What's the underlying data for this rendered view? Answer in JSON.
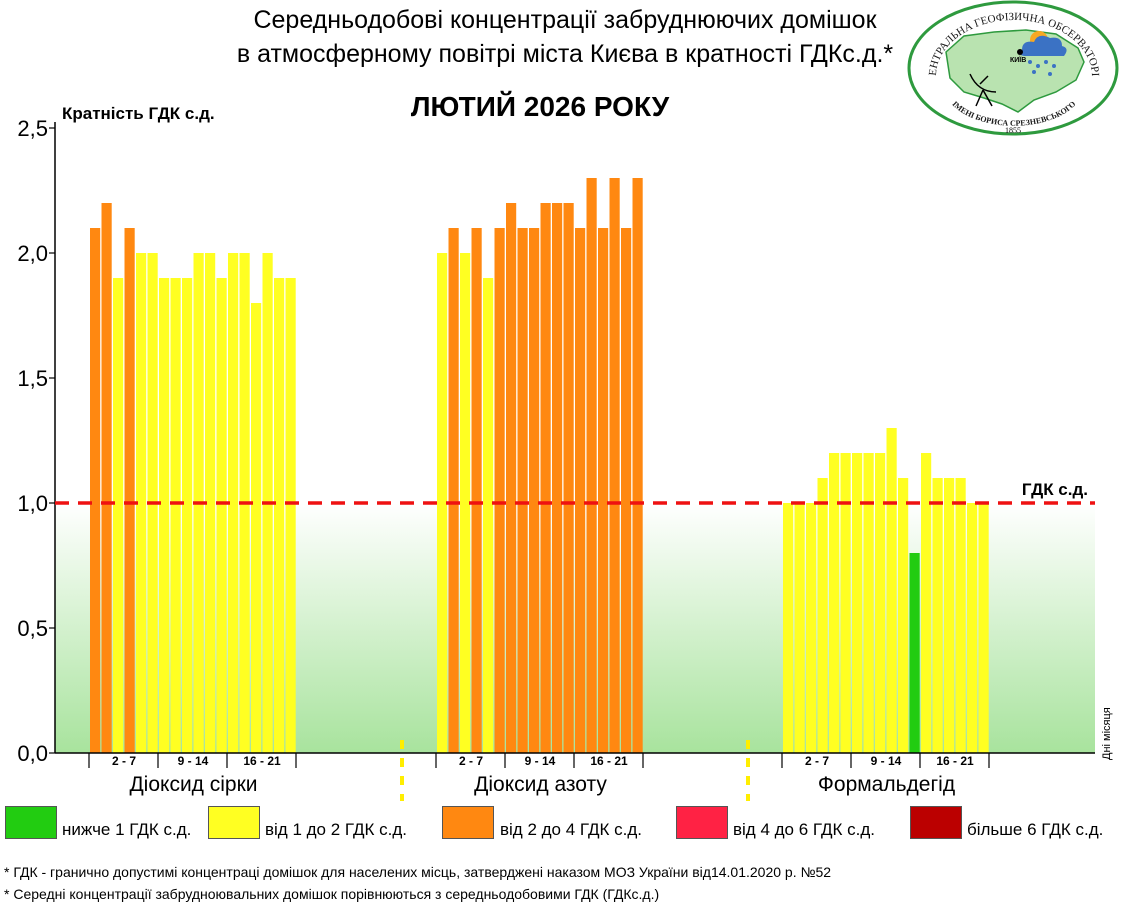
{
  "title_line1": "Середньодобові концентрації забруднюючих домішок",
  "title_line2": "в атмосферному повітрі міста Києва в кратності ГДКс.д.*",
  "month_title": "ЛЮТИЙ 2026 РОКУ",
  "logo": {
    "text_top": "ЦЕНТРАЛЬНА ГЕОФІЗИЧНА ОБСЕРВАТОРІЯ",
    "text_bottom": "ІМЕНІ БОРИСА СРЕЗНЕВСЬКОГО",
    "year": "1855",
    "city": "КИЇВ"
  },
  "legend": [
    {
      "label": "нижче 1 ГДК с.д.",
      "color": "#22cc11"
    },
    {
      "label": "від 1 до 2 ГДК с.д.",
      "color": "#ffff22"
    },
    {
      "label": "від 2 до 4 ГДК с.д.",
      "color": "#ff8811"
    },
    {
      "label": "від 4 до 6 ГДК с.д.",
      "color": "#ff2244"
    },
    {
      "label": "більше 6 ГДК с.д.",
      "color": "#bb0000"
    }
  ],
  "footnotes": [
    "* ГДК - гранично допустимі концентраці домішок для населених місць, затверджені наказом МОЗ України від14.01.2020 р. №52",
    "* Середні концентрації забрудноювальних домішок порівнюються з середньодобовими  ГДК (ГДКс.д.)"
  ],
  "chart_data": {
    "type": "bar",
    "ylabel": "Кратність ГДК с.д.",
    "xlabel": "Дні місяця",
    "ylim": [
      0,
      2.5
    ],
    "yticks": [
      "0,0",
      "0,5",
      "1,0",
      "1,5",
      "2,0",
      "2,5"
    ],
    "reference_line": {
      "value": 1.0,
      "label": "ГДК с.д."
    },
    "week_labels": [
      "2 - 7",
      "9 - 14",
      "16 - 21"
    ],
    "groups": [
      {
        "name": "Діоксид сірки",
        "values": [
          2.1,
          2.2,
          1.9,
          2.1,
          2.0,
          2.0,
          1.9,
          1.9,
          1.9,
          2.0,
          2.0,
          1.9,
          2.0,
          2.0,
          1.8,
          2.0,
          1.9,
          1.9
        ]
      },
      {
        "name": "Діоксид азоту",
        "values": [
          2.0,
          2.1,
          2.0,
          2.1,
          1.9,
          2.1,
          2.2,
          2.1,
          2.1,
          2.2,
          2.2,
          2.2,
          2.1,
          2.3,
          2.1,
          2.3,
          2.1,
          2.3
        ]
      },
      {
        "name": "Формальдегід",
        "values": [
          1.0,
          1.0,
          1.0,
          1.1,
          1.2,
          1.2,
          1.2,
          1.2,
          1.2,
          1.3,
          1.1,
          0.8,
          1.2,
          1.1,
          1.1,
          1.1,
          1.0,
          1.0
        ]
      }
    ]
  }
}
